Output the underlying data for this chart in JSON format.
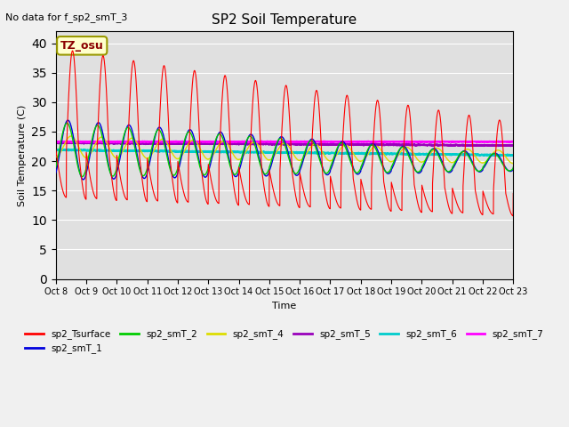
{
  "title": "SP2 Soil Temperature",
  "subtitle": "No data for f_sp2_smT_3",
  "xlabel": "Time",
  "ylabel": "Soil Temperature (C)",
  "ylim": [
    0,
    42
  ],
  "yticks": [
    0,
    5,
    10,
    15,
    20,
    25,
    30,
    35,
    40
  ],
  "xtick_labels": [
    "Oct 8",
    "Oct 9",
    "Oct 10",
    "Oct 11",
    "Oct 12",
    "Oct 13",
    "Oct 14",
    "Oct 15",
    "Oct 16",
    "Oct 17",
    "Oct 18",
    "Oct 19",
    "Oct 20",
    "Oct 21",
    "Oct 22",
    "Oct 23"
  ],
  "tz_label": "TZ_osu",
  "ax_facecolor": "#e0e0e0",
  "fig_facecolor": "#f0f0f0",
  "series_colors": {
    "sp2_Tsurface": "#ff0000",
    "sp2_smT_1": "#0000dd",
    "sp2_smT_2": "#00cc00",
    "sp2_smT_4": "#dddd00",
    "sp2_smT_5": "#9900bb",
    "sp2_smT_6": "#00cccc",
    "sp2_smT_7": "#ff00ff"
  }
}
